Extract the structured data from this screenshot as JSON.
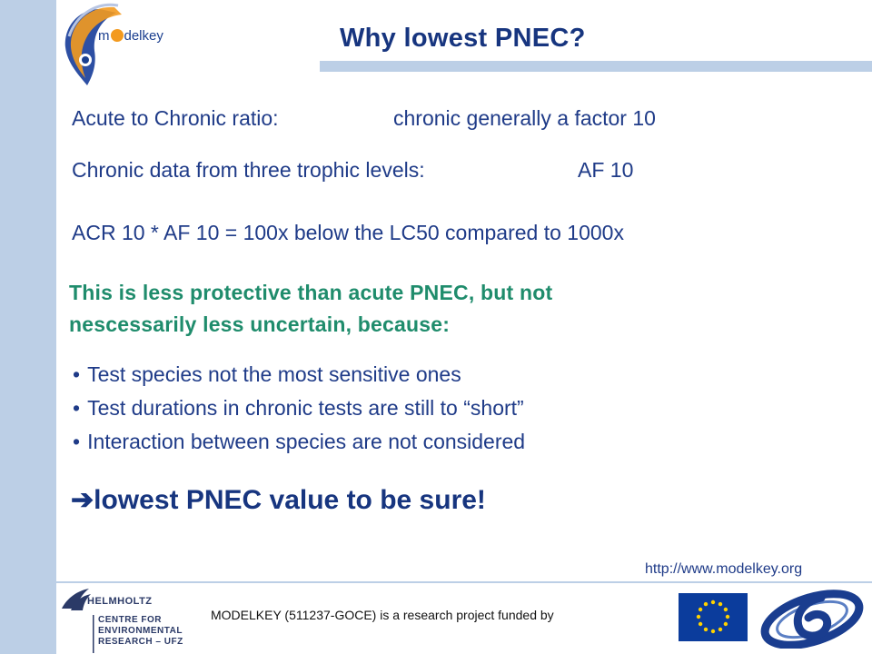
{
  "logo": {
    "text_pre": "m",
    "text_post": "delkey"
  },
  "title": "Why lowest PNEC?",
  "lines": {
    "acr_label": "Acute to Chronic ratio:",
    "acr_value": "chronic generally a factor 10",
    "chronic_label": "Chronic data from three trophic levels:",
    "chronic_value": "AF 10",
    "calc": "ACR 10 * AF 10 = 100x below the LC50 compared to 1000x"
  },
  "highlight": {
    "line1": "This is less protective than acute PNEC, but not",
    "line2": "nescessarily less uncertain, because:"
  },
  "bullets": [
    "Test species not the most sensitive ones",
    "Test durations in chronic tests are still to “short”",
    "Interaction between species are not considered"
  ],
  "conclusion": {
    "arrow": "➔",
    "text": "lowest PNEC value to be sure!"
  },
  "url": "http://www.modelkey.org",
  "footer": {
    "helmholtz_lines": [
      "HELMHOLTZ",
      "CENTRE FOR",
      "ENVIRONMENTAL",
      "RESEARCH – UFZ"
    ],
    "funding_text": "MODELKEY (511237-GOCE) is a research project funded by"
  },
  "colors": {
    "sidebar": "#bccfe6",
    "title": "#17357f",
    "body_text": "#1f3b88",
    "highlight": "#1f8c6c",
    "logo_accent": "#f39a1f"
  }
}
